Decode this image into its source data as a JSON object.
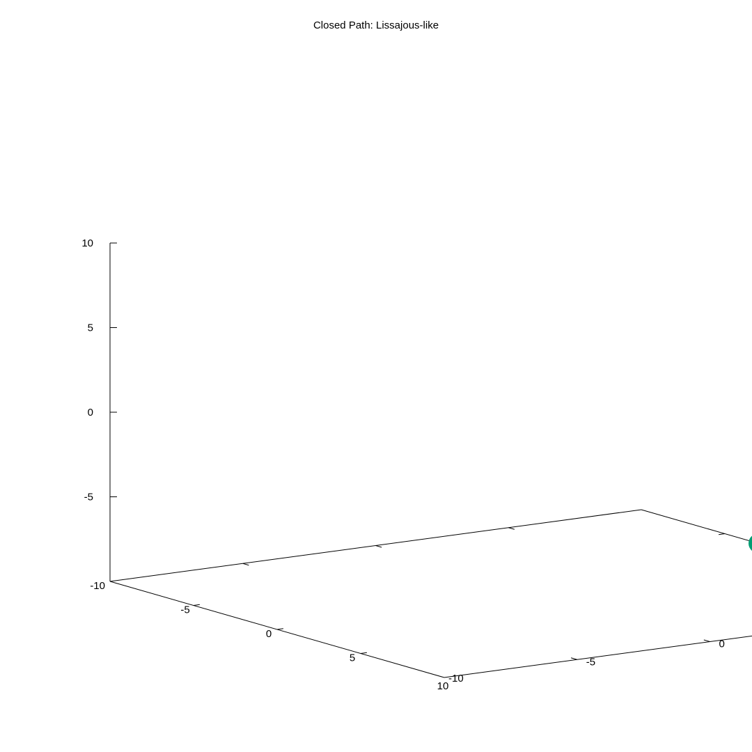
{
  "chart_data": {
    "type": "scatter",
    "title": "Closed Path: Lissajous-like",
    "xlim": [
      -10,
      10
    ],
    "ylim": [
      -10,
      10
    ],
    "zlim": [
      -10,
      10
    ],
    "x_ticks": [
      -10,
      -5,
      0,
      5,
      10
    ],
    "y_ticks": [
      -10,
      -5,
      0,
      5,
      10
    ],
    "z_ticks": [
      -10,
      -5,
      0,
      5,
      10
    ],
    "x_tick_labels": [
      "-10",
      "-5",
      "0",
      "5",
      "10"
    ],
    "y_tick_labels": [
      "-10",
      "-5",
      "0",
      "5",
      "10"
    ],
    "z_tick_labels": [
      "-10",
      "-5",
      "0",
      "5",
      "10"
    ],
    "points": [
      {
        "x": -3,
        "y": 10,
        "z": -10
      }
    ],
    "marker_color": "#009e73",
    "grid": false,
    "legend": "none"
  }
}
